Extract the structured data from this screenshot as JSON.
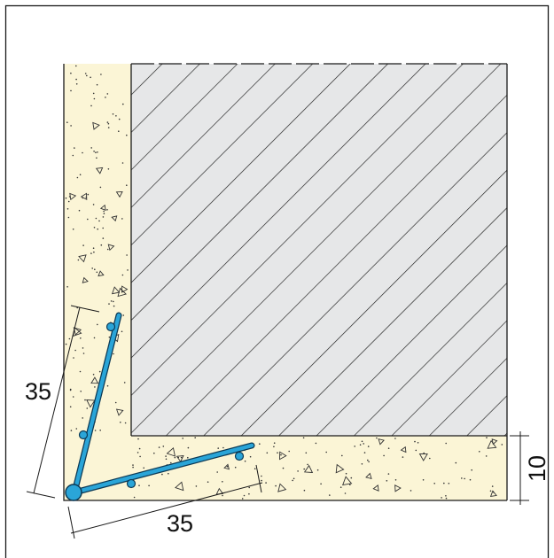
{
  "dimensions": {
    "vertical_leg": "35",
    "horizontal_leg": "35",
    "cover_thickness": "10"
  },
  "colors": {
    "concrete_fill": "#fbf5d6",
    "hatch_fill": "#e6e7e8",
    "hatch_line": "#1a1a1a",
    "rebar": "#2aa5d8",
    "rebar_outline": "#0d3a55",
    "outline": "#1a1a1a"
  }
}
